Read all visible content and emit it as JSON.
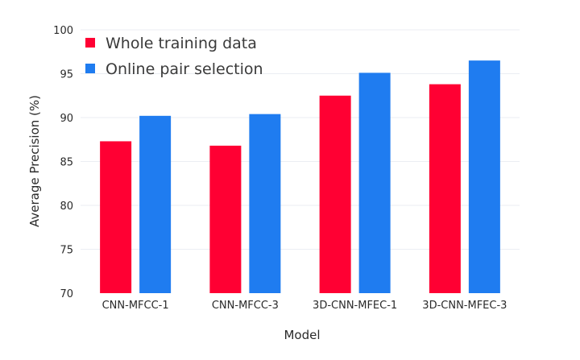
{
  "chart_data": {
    "type": "bar",
    "title": "",
    "xlabel": "Model",
    "ylabel": "Average Precision (%)",
    "categories": [
      "CNN-MFCC-1",
      "CNN-MFCC-3",
      "3D-CNN-MFEC-1",
      "3D-CNN-MFEC-3"
    ],
    "series": [
      {
        "name": "Whole training data",
        "color": "#ff0033",
        "values": [
          87.3,
          86.8,
          92.5,
          93.8
        ]
      },
      {
        "name": "Online pair selection",
        "color": "#1f7cf0",
        "values": [
          90.2,
          90.4,
          95.1,
          96.5
        ]
      }
    ],
    "ylim": [
      70,
      100
    ],
    "yticks": [
      70,
      75,
      80,
      85,
      90,
      95,
      100
    ],
    "grid": true,
    "legend_position": "top-left"
  }
}
